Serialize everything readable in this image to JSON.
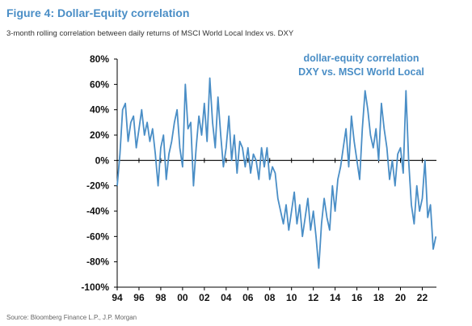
{
  "figure": {
    "title": "Figure 4: Dollar-Equity correlation",
    "subtitle": "3-month rolling correlation between daily returns of MSCI World Local Index vs. DXY",
    "source": "Source: Bloomberg Finance L.P., J.P. Morgan"
  },
  "chart_data": {
    "type": "line",
    "title": "Figure 4: Dollar-Equity correlation",
    "subtitle": "3-month rolling correlation between daily returns of MSCI World Local Index vs. DXY",
    "xlabel": "",
    "ylabel": "",
    "xlim": [
      1994,
      2023.3
    ],
    "ylim": [
      -100,
      80
    ],
    "y_unit": "%",
    "yticks": [
      80,
      60,
      40,
      20,
      0,
      -20,
      -40,
      -60,
      -80,
      -100
    ],
    "ytick_labels": [
      "80%",
      "60%",
      "40%",
      "20%",
      "0%",
      "-20%",
      "-40%",
      "-60%",
      "-80%",
      "-100%"
    ],
    "xticks": [
      1994,
      1996,
      1998,
      2000,
      2002,
      2004,
      2006,
      2008,
      2010,
      2012,
      2014,
      2016,
      2018,
      2020,
      2022
    ],
    "xtick_labels": [
      "94",
      "96",
      "98",
      "00",
      "02",
      "04",
      "06",
      "08",
      "10",
      "12",
      "14",
      "16",
      "18",
      "20",
      "22"
    ],
    "grid": false,
    "zero_line": true,
    "line_color": "#4a8ec6",
    "annotation_lines": [
      "dollar-equity correlation",
      "DXY vs. MSCI World Local"
    ],
    "series": [
      {
        "x": [
          1994.0,
          1994.25,
          1994.5,
          1994.75,
          1995.0,
          1995.25,
          1995.5,
          1995.75,
          1996.0,
          1996.25,
          1996.5,
          1996.75,
          1997.0,
          1997.25,
          1997.5,
          1997.75,
          1998.0,
          1998.25,
          1998.5,
          1998.75,
          1999.0,
          1999.25,
          1999.5,
          1999.75,
          2000.0,
          2000.25,
          2000.5,
          2000.75,
          2001.0,
          2001.25,
          2001.5,
          2001.75,
          2002.0,
          2002.25,
          2002.5,
          2002.75,
          2003.0,
          2003.25,
          2003.5,
          2003.75,
          2004.0,
          2004.25,
          2004.5,
          2004.75,
          2005.0,
          2005.25,
          2005.5,
          2005.75,
          2006.0,
          2006.25,
          2006.5,
          2006.75,
          2007.0,
          2007.25,
          2007.5,
          2007.75,
          2008.0,
          2008.25,
          2008.5,
          2008.75,
          2009.0,
          2009.25,
          2009.5,
          2009.75,
          2010.0,
          2010.25,
          2010.5,
          2010.75,
          2011.0,
          2011.25,
          2011.5,
          2011.75,
          2012.0,
          2012.25,
          2012.5,
          2012.75,
          2013.0,
          2013.25,
          2013.5,
          2013.75,
          2014.0,
          2014.25,
          2014.5,
          2014.75,
          2015.0,
          2015.25,
          2015.5,
          2015.75,
          2016.0,
          2016.25,
          2016.5,
          2016.75,
          2017.0,
          2017.25,
          2017.5,
          2017.75,
          2018.0,
          2018.25,
          2018.5,
          2018.75,
          2019.0,
          2019.25,
          2019.5,
          2019.75,
          2020.0,
          2020.25,
          2020.5,
          2020.75,
          2021.0,
          2021.25,
          2021.5,
          2021.75,
          2022.0,
          2022.25,
          2022.5,
          2022.75,
          2023.0,
          2023.25
        ],
        "values": [
          -20,
          5,
          40,
          45,
          15,
          30,
          35,
          10,
          25,
          40,
          20,
          30,
          15,
          25,
          5,
          -20,
          10,
          20,
          -15,
          5,
          15,
          30,
          40,
          10,
          -5,
          60,
          25,
          30,
          -20,
          10,
          35,
          20,
          45,
          15,
          65,
          30,
          10,
          50,
          20,
          -5,
          10,
          35,
          0,
          20,
          -10,
          15,
          10,
          -5,
          10,
          -10,
          5,
          0,
          -15,
          10,
          -5,
          10,
          -15,
          -5,
          -10,
          -30,
          -40,
          -50,
          -35,
          -55,
          -40,
          -25,
          -50,
          -35,
          -60,
          -45,
          -30,
          -55,
          -40,
          -60,
          -85,
          -50,
          -30,
          -45,
          -55,
          -20,
          -40,
          -15,
          -5,
          10,
          25,
          -5,
          35,
          15,
          0,
          -15,
          25,
          55,
          40,
          20,
          10,
          25,
          0,
          45,
          25,
          10,
          -15,
          0,
          -20,
          5,
          10,
          -10,
          55,
          0,
          -35,
          -50,
          -20,
          -40,
          -30,
          0,
          -45,
          -35,
          -70,
          -60
        ]
      }
    ]
  }
}
